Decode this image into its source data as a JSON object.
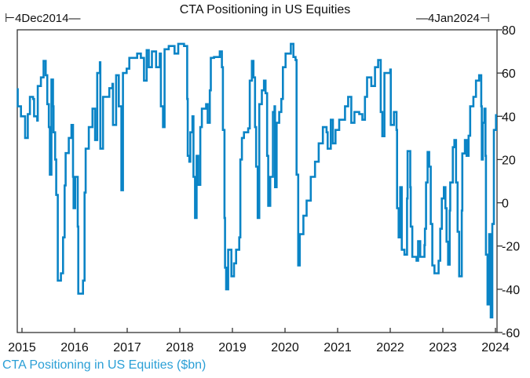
{
  "chart_data": {
    "type": "line",
    "title": "CTA Positioning in US Equities",
    "range_start": "4Dec2014",
    "range_end": "4Jan2024",
    "series": [
      {
        "name": "CTA Positioning in US Equities ($bn)",
        "color": "#0a84c6",
        "x": [
          2014.9,
          2014.92,
          2014.98,
          2015.06,
          2015.11,
          2015.15,
          2015.21,
          2015.23,
          2015.29,
          2015.3,
          2015.36,
          2015.41,
          2015.45,
          2015.48,
          2015.51,
          2015.53,
          2015.56,
          2015.59,
          2015.6,
          2015.63,
          2015.65,
          2015.68,
          2015.74,
          2015.78,
          2015.81,
          2015.83,
          2015.89,
          2015.94,
          2015.97,
          2015.98,
          2016.01,
          2016.06,
          2016.07,
          2016.16,
          2016.19,
          2016.21,
          2016.27,
          2016.34,
          2016.39,
          2016.43,
          2016.48,
          2016.49,
          2016.54,
          2016.66,
          2016.72,
          2016.73,
          2016.79,
          2016.84,
          2016.89,
          2016.92,
          2016.99,
          2017.04,
          2017.19,
          2017.26,
          2017.32,
          2017.37,
          2017.41,
          2017.47,
          2017.55,
          2017.62,
          2017.64,
          2017.68,
          2017.71,
          2017.79,
          2017.9,
          2017.97,
          2018.08,
          2018.14,
          2018.15,
          2018.18,
          2018.2,
          2018.24,
          2018.26,
          2018.29,
          2018.32,
          2018.35,
          2018.39,
          2018.42,
          2018.5,
          2018.53,
          2018.57,
          2018.59,
          2018.65,
          2018.76,
          2018.8,
          2018.82,
          2018.85,
          2018.86,
          2018.88,
          2018.92,
          2018.98,
          2019.03,
          2019.07,
          2019.13,
          2019.15,
          2019.18,
          2019.22,
          2019.3,
          2019.33,
          2019.37,
          2019.4,
          2019.43,
          2019.45,
          2019.48,
          2019.51,
          2019.56,
          2019.6,
          2019.63,
          2019.66,
          2019.68,
          2019.72,
          2019.77,
          2019.8,
          2019.81,
          2019.84,
          2019.89,
          2019.93,
          2019.96,
          2020.01,
          2020.11,
          2020.16,
          2020.2,
          2020.22,
          2020.25,
          2020.28,
          2020.35,
          2020.41,
          2020.49,
          2020.57,
          2020.64,
          2020.72,
          2020.79,
          2020.81,
          2020.87,
          2020.91,
          2020.96,
          2021.03,
          2021.14,
          2021.2,
          2021.26,
          2021.32,
          2021.41,
          2021.47,
          2021.52,
          2021.56,
          2021.64,
          2021.71,
          2021.77,
          2021.82,
          2021.85,
          2021.89,
          2022.0,
          2022.01,
          2022.07,
          2022.12,
          2022.13,
          2022.16,
          2022.19,
          2022.22,
          2022.27,
          2022.32,
          2022.33,
          2022.38,
          2022.39,
          2022.42,
          2022.5,
          2022.53,
          2022.57,
          2022.65,
          2022.66,
          2022.68,
          2022.71,
          2022.74,
          2022.77,
          2022.8,
          2022.84,
          2022.92,
          2022.95,
          2022.98,
          2023.02,
          2023.05,
          2023.07,
          2023.1,
          2023.13,
          2023.14,
          2023.19,
          2023.22,
          2023.25,
          2023.28,
          2023.31,
          2023.36,
          2023.37,
          2023.42,
          2023.45,
          2023.49,
          2023.52,
          2023.58,
          2023.63,
          2023.69,
          2023.73,
          2023.74,
          2023.76,
          2023.79,
          2023.81,
          2023.82,
          2023.85,
          2023.88,
          2023.91,
          2023.94,
          2023.97,
          2024.01
        ],
        "y": [
          52.5,
          44.6,
          40,
          30,
          41,
          49,
          48,
          40,
          38,
          54,
          58,
          65.6,
          59,
          45.6,
          35,
          13,
          57,
          44.6,
          32.6,
          20,
          3.6,
          -36,
          -32.6,
          -16,
          8,
          23,
          30,
          36,
          12,
          -2.5,
          12,
          -11,
          -42,
          -36,
          4.7,
          25,
          35,
          43.5,
          29,
          60,
          65,
          25,
          49,
          53,
          55,
          36,
          59,
          44.6,
          5.8,
          60,
          62,
          67,
          69,
          67,
          56.5,
          70.6,
          62.7,
          70,
          62.7,
          69,
          44.6,
          35,
          71,
          72.5,
          69,
          73.5,
          72.5,
          48,
          21.7,
          19,
          32.6,
          40,
          12,
          -7,
          21.7,
          8.3,
          35,
          43.5,
          45.6,
          37,
          52,
          67,
          67.4,
          70,
          62.7,
          33.7,
          -7,
          -30,
          -40,
          -21.7,
          -34,
          -28,
          -21.7,
          -16,
          20,
          30,
          32.6,
          34.4,
          56.5,
          65.6,
          58,
          35,
          16.7,
          -7,
          45.6,
          52,
          56.5,
          50.7,
          21.7,
          -1.4,
          12,
          42,
          44.6,
          7.2,
          37,
          42,
          48,
          62.7,
          69,
          73.5,
          67.4,
          66,
          13,
          -29,
          -14.5,
          -6,
          1,
          12,
          19,
          27.5,
          35,
          32.6,
          25,
          38.4,
          27.5,
          33.7,
          38.4,
          44.6,
          49,
          37,
          42,
          41,
          38.4,
          49,
          58,
          54,
          62.7,
          66,
          42,
          30.8,
          60,
          61.6,
          36,
          42,
          33.7,
          -2.5,
          -16,
          7.2,
          -21.7,
          -24,
          2,
          23.9,
          7.2,
          -11,
          -25,
          -26.8,
          -17.8,
          -25,
          -19.6,
          -12,
          9.4,
          23.5,
          16.7,
          -9.8,
          -29,
          -32.6,
          -26.8,
          -12,
          2,
          7.2,
          -2.5,
          -18,
          -28.6,
          -3.6,
          9.4,
          25.7,
          29,
          9.4,
          -13.4,
          -34,
          -3.6,
          22.8,
          29,
          21.7,
          31,
          44.6,
          49,
          56.5,
          59,
          44.6,
          20,
          37,
          43.5,
          21.7,
          -24,
          -47,
          -14.5,
          -53,
          -9.8,
          33.7,
          41
        ]
      }
    ],
    "xlim": [
      2014.91,
      2024.05
    ],
    "ylim": [
      -60,
      80
    ],
    "x_ticks": [
      "2015",
      "2016",
      "2017",
      "2018",
      "2019",
      "2020",
      "2021",
      "2022",
      "2023",
      "2024"
    ],
    "y_ticks": [
      "80",
      "60",
      "40",
      "20",
      "0",
      "-20",
      "-40",
      "-60"
    ],
    "y_axis_side": "right",
    "grid": false,
    "legend": "bottom-left",
    "legend_label": "CTA Positioning in US Equities ($bn)"
  }
}
